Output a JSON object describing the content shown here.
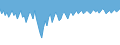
{
  "chart_data": {
    "type": "area",
    "x": [
      0,
      1,
      2,
      3,
      4,
      5,
      6,
      7,
      8,
      9,
      10,
      11,
      12,
      13,
      14,
      15,
      16,
      17,
      18,
      19,
      20,
      21,
      22,
      23,
      24,
      25,
      26,
      27,
      28,
      29,
      30,
      31,
      32,
      33,
      34,
      35,
      36,
      37,
      38,
      39,
      40,
      41,
      42,
      43,
      44,
      45,
      46,
      47,
      48,
      49,
      50,
      51,
      52,
      53,
      54,
      55,
      56,
      57,
      58,
      59,
      60,
      61,
      62,
      63,
      64,
      65,
      66,
      67,
      68,
      69
    ],
    "values": [
      -1.5,
      -3.0,
      -2.0,
      -3.5,
      -2.5,
      -4.0,
      -3.0,
      -2.0,
      -3.5,
      -2.8,
      -4.5,
      -3.2,
      -2.0,
      -4.0,
      -3.5,
      -5.5,
      -4.0,
      -2.5,
      -3.0,
      -4.5,
      -2.0,
      -4.5,
      -6.5,
      -8.5,
      -10.0,
      -7.0,
      -5.0,
      -6.5,
      -4.0,
      -3.0,
      -5.5,
      -4.0,
      -2.5,
      -3.5,
      -5.0,
      -4.5,
      -3.0,
      -2.5,
      -3.5,
      -4.5,
      -3.0,
      -2.5,
      -3.5,
      -2.8,
      -2.0,
      -3.0,
      -2.5,
      -2.0,
      -3.0,
      -2.5,
      -2.0,
      -2.5,
      -3.0,
      -2.2,
      -1.8,
      -2.5,
      -2.0,
      -2.8,
      -2.2,
      -1.5,
      -2.0,
      -3.0,
      -2.5,
      -2.0,
      -2.8,
      -2.2,
      -1.8,
      -2.5,
      -2.0,
      -1.5
    ],
    "color": "#4a9fd4",
    "xlim": [
      0,
      69
    ],
    "ylim": [
      -12,
      1
    ],
    "grid": false,
    "tick_labels": false
  }
}
